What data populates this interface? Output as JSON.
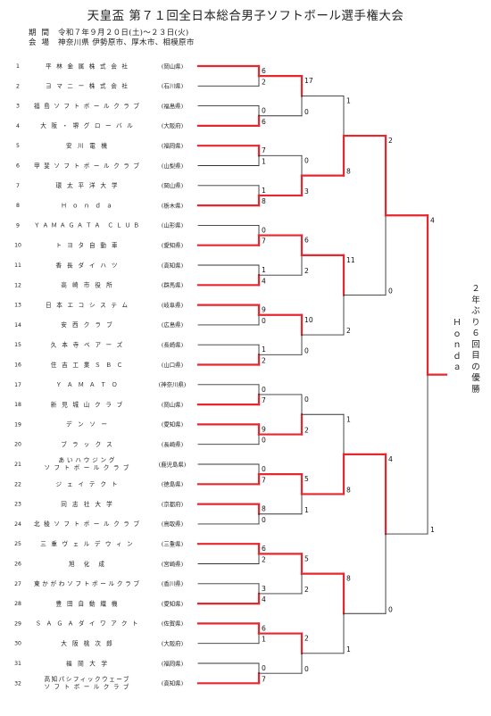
{
  "title": "天皇盃 第７１回全日本総合男子ソフトボール選手権大会",
  "info": [
    {
      "label": "期間",
      "value": "令和７年９月２０日(土)～２３日(火)"
    },
    {
      "label": "会場",
      "value": "神奈川県 伊勢原市、厚木市、相模原市"
    }
  ],
  "teams": [
    {
      "no": "1",
      "name": "平林金属株式会社",
      "pref": "(岡山県)"
    },
    {
      "no": "2",
      "name": "ヨマニー株式会社",
      "pref": "(石川県)"
    },
    {
      "no": "3",
      "name": "福島ソフトボールクラブ",
      "pref": "(福島県)"
    },
    {
      "no": "4",
      "name": "大阪・堺グローバル",
      "pref": "(大阪府)"
    },
    {
      "no": "5",
      "name": "安川電機",
      "pref": "(福岡県)"
    },
    {
      "no": "6",
      "name": "甲斐ソフトボールクラブ",
      "pref": "(山梨県)"
    },
    {
      "no": "7",
      "name": "環太平洋大学",
      "pref": "(岡山県)"
    },
    {
      "no": "8",
      "name": "Ｈｏｎｄａ",
      "pref": "(栃木県)"
    },
    {
      "no": "9",
      "name": "ＹＡＭＡＧＡＴＡ ＣＬＵＢ",
      "pref": "(山形県)"
    },
    {
      "no": "10",
      "name": "トヨタ自動車",
      "pref": "(愛知県)"
    },
    {
      "no": "11",
      "name": "香長ダイハツ",
      "pref": "(高知県)"
    },
    {
      "no": "12",
      "name": "高崎市役所",
      "pref": "(群馬県)"
    },
    {
      "no": "13",
      "name": "日本エコシステム",
      "pref": "(岐阜県)"
    },
    {
      "no": "14",
      "name": "安西クラブ",
      "pref": "(広島県)"
    },
    {
      "no": "15",
      "name": "久本寺ベアーズ",
      "pref": "(長崎県)"
    },
    {
      "no": "16",
      "name": "住吉工業ＳＢＣ",
      "pref": "(山口県)"
    },
    {
      "no": "17",
      "name": "ＹＡＭＡＴＯ",
      "pref": "(神奈川県)"
    },
    {
      "no": "18",
      "name": "新見城山クラブ",
      "pref": "(岡山県)"
    },
    {
      "no": "19",
      "name": "デンソー",
      "pref": "(愛知県)"
    },
    {
      "no": "20",
      "name": "ブラックス",
      "pref": "(長崎県)"
    },
    {
      "no": "21",
      "name": "あいハウジング",
      "name2": "ソフトボールクラブ",
      "pref": "(鹿児島県)"
    },
    {
      "no": "22",
      "name": "ジェイテクト",
      "pref": "(徳島県)"
    },
    {
      "no": "23",
      "name": "同志社大学",
      "pref": "(京都府)"
    },
    {
      "no": "24",
      "name": "北稜ソフトボールクラブ",
      "pref": "(鳥取県)"
    },
    {
      "no": "25",
      "name": "三重ヴェルデウィン",
      "pref": "(三重県)"
    },
    {
      "no": "26",
      "name": "旭化成",
      "pref": "(宮崎県)"
    },
    {
      "no": "27",
      "name": "東かがわソフトボールクラブ",
      "pref": "(香川県)"
    },
    {
      "no": "28",
      "name": "豊田自動織機",
      "pref": "(愛知県)"
    },
    {
      "no": "29",
      "name": "ＳＡＧＡダイワアクト",
      "pref": "(佐賀県)"
    },
    {
      "no": "30",
      "name": "大阪桃次郎",
      "pref": "(大阪府)"
    },
    {
      "no": "31",
      "name": "福岡大学",
      "pref": "(福岡県)"
    },
    {
      "no": "32",
      "name": "高知パシフィックウェーブ",
      "name2": "ソフトボールクラブ",
      "pref": "(高知県)"
    }
  ],
  "rounds": [
    [
      {
        "top": "6",
        "bottom": "2",
        "winner": "top"
      },
      {
        "top": "0",
        "bottom": "6",
        "winner": "bottom"
      },
      {
        "top": "7",
        "bottom": "1",
        "winner": "top"
      },
      {
        "top": "1",
        "bottom": "8",
        "winner": "bottom"
      },
      {
        "top": "0",
        "bottom": "7",
        "winner": "bottom"
      },
      {
        "top": "1",
        "bottom": "4",
        "winner": "bottom"
      },
      {
        "top": "9",
        "bottom": "0",
        "winner": "top"
      },
      {
        "top": "1",
        "bottom": "2",
        "winner": "bottom"
      },
      {
        "top": "0",
        "bottom": "7",
        "winner": "bottom"
      },
      {
        "top": "9",
        "bottom": "0",
        "winner": "top"
      },
      {
        "top": "0",
        "bottom": "7",
        "winner": "bottom"
      },
      {
        "top": "8",
        "bottom": "0",
        "winner": "top"
      },
      {
        "top": "6",
        "bottom": "2",
        "winner": "top"
      },
      {
        "top": "3",
        "bottom": "4",
        "winner": "bottom"
      },
      {
        "top": "6",
        "bottom": "1",
        "winner": "top"
      },
      {
        "top": "0",
        "bottom": "7",
        "winner": "bottom"
      }
    ],
    [
      {
        "top": "17",
        "bottom": "0",
        "winner": "top"
      },
      {
        "top": "0",
        "bottom": "3",
        "winner": "bottom"
      },
      {
        "top": "6",
        "bottom": "2",
        "winner": "top"
      },
      {
        "top": "10",
        "bottom": "0",
        "winner": "top"
      },
      {
        "top": "0",
        "bottom": "2",
        "winner": "bottom"
      },
      {
        "top": "5",
        "bottom": "1",
        "winner": "top"
      },
      {
        "top": "5",
        "bottom": "2",
        "winner": "top"
      },
      {
        "top": "2",
        "bottom": "0",
        "winner": "top"
      }
    ],
    [
      {
        "top": "1",
        "bottom": "8",
        "winner": "bottom"
      },
      {
        "top": "11",
        "bottom": "2",
        "winner": "top"
      },
      {
        "top": "1",
        "bottom": "8",
        "winner": "bottom"
      },
      {
        "top": "8",
        "bottom": "1",
        "winner": "top"
      }
    ],
    [
      {
        "top": "2",
        "bottom": "0",
        "winner": "top"
      },
      {
        "top": "4",
        "bottom": "0",
        "winner": "top"
      }
    ],
    [
      {
        "top": "4",
        "bottom": "1",
        "winner": "top"
      }
    ]
  ],
  "winner": "Ｈｏｎｄａ",
  "champion_note": "２年ぶり６回目の優勝",
  "colors": {
    "win": "#e8262d",
    "line": "#333333"
  }
}
